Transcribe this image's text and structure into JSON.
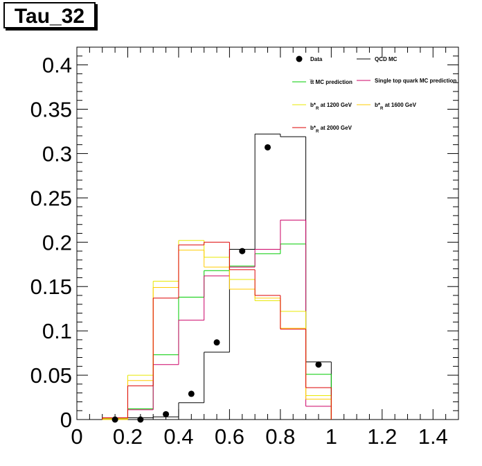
{
  "chart_data": {
    "type": "histogram",
    "title": "Tau_32",
    "xlim": [
      0,
      1.5
    ],
    "ylim": [
      0,
      0.42
    ],
    "x_ticks": [
      "0",
      "0.2",
      "0.4",
      "0.6",
      "0.8",
      "1",
      "1.2",
      "1.4"
    ],
    "y_ticks": [
      "0",
      "0.05",
      "0.1",
      "0.15",
      "0.2",
      "0.25",
      "0.3",
      "0.35",
      "0.4"
    ],
    "bin_edges": [
      0.1,
      0.2,
      0.3,
      0.4,
      0.5,
      0.6,
      0.7,
      0.8,
      0.9,
      1.0
    ],
    "series": [
      {
        "name": "Data",
        "style": "markers",
        "color": "#000000",
        "x": [
          0.15,
          0.25,
          0.35,
          0.45,
          0.55,
          0.65,
          0.75,
          0.95
        ],
        "y": [
          0.0,
          0.0,
          0.006,
          0.029,
          0.087,
          0.19,
          0.307,
          0.062
        ]
      },
      {
        "name": "QCD MC",
        "style": "hist",
        "color": "#000000",
        "values": [
          0.001,
          0.002,
          0.003,
          0.019,
          0.076,
          0.192,
          0.322,
          0.319,
          0.065
        ]
      },
      {
        "name": "t̅t MC prediction",
        "style": "hist",
        "color": "#00cc00",
        "values": [
          0.0,
          0.012,
          0.073,
          0.138,
          0.168,
          0.173,
          0.187,
          0.198,
          0.051
        ]
      },
      {
        "name": "Single top quark MC prediction",
        "style": "hist",
        "color": "#cc0066",
        "values": [
          0.0,
          0.011,
          0.062,
          0.112,
          0.162,
          0.172,
          0.192,
          0.225,
          0.015
        ]
      },
      {
        "name": "b*_R at 1200 GeV",
        "style": "hist",
        "color": "#e8e800",
        "values": [
          0.001,
          0.05,
          0.156,
          0.202,
          0.183,
          0.158,
          0.134,
          0.122,
          0.027
        ]
      },
      {
        "name": "b*_R at 1600 GeV",
        "style": "hist",
        "color": "#ffcc00",
        "values": [
          0.0,
          0.044,
          0.149,
          0.191,
          0.172,
          0.147,
          0.137,
          0.103,
          0.023
        ]
      },
      {
        "name": "b*_R at 2000 GeV",
        "style": "hist",
        "color": "#dd0000",
        "values": [
          0.002,
          0.038,
          0.137,
          0.197,
          0.2,
          0.169,
          0.14,
          0.102,
          0.036
        ]
      }
    ],
    "legend": {
      "position": "top-right",
      "entries": [
        {
          "label": "Data",
          "color": "#000000",
          "kind": "marker"
        },
        {
          "label": "QCD MC",
          "color": "#000000",
          "kind": "line"
        },
        {
          "label": "t̅t MC prediction",
          "color": "#00cc00",
          "kind": "line"
        },
        {
          "label": "Single top quark MC prediction",
          "color": "#cc0066",
          "kind": "line"
        },
        {
          "label": "b*",
          "sub": "R",
          "suffix": " at 1200 GeV",
          "color": "#e8e800",
          "kind": "line"
        },
        {
          "label": "b*",
          "sub": "R",
          "suffix": " at 1600 GeV",
          "color": "#ffcc00",
          "kind": "line"
        },
        {
          "label": "b*",
          "sub": "R",
          "suffix": " at 2000 GeV",
          "color": "#dd0000",
          "kind": "line"
        }
      ]
    },
    "grid": false
  }
}
